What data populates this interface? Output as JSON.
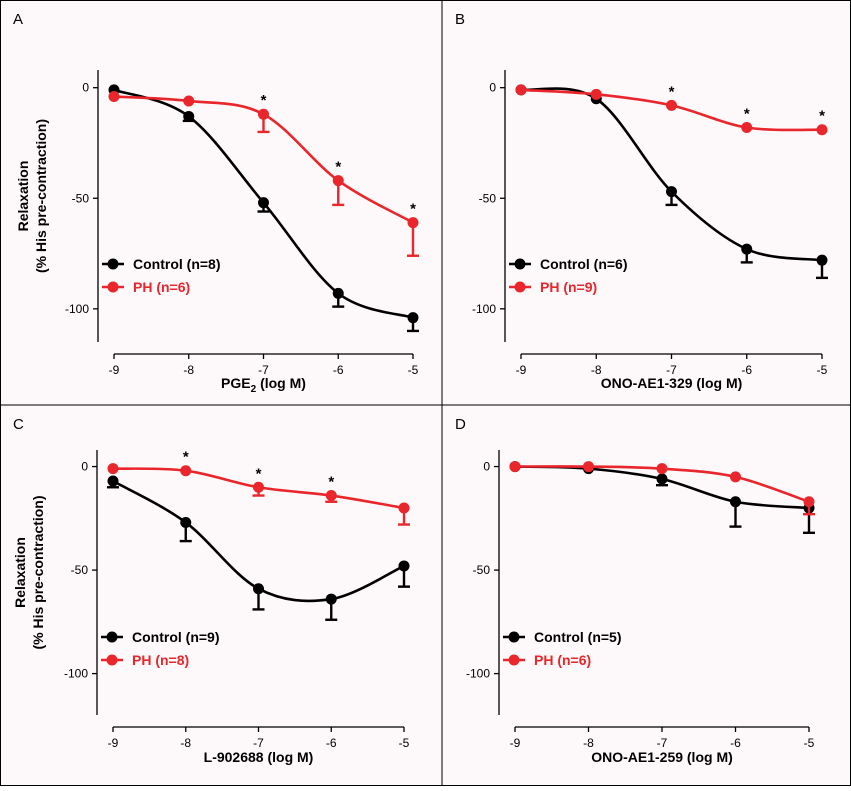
{
  "colors": {
    "control": "#000000",
    "ph": "#e8262b",
    "panel_bg": "#fdf8f9",
    "border": "#000000"
  },
  "chart_data": [
    {
      "type": "line",
      "panel_label": "A",
      "xlabel_main": "PGE",
      "xlabel_sub": "2",
      "xlabel_tail": " (log M)",
      "ylabel_line1": "Relaxation",
      "ylabel_line2": "(% His pre-contraction)",
      "x": [
        -9,
        -8,
        -7,
        -6,
        -5
      ],
      "x_tick_labels": [
        "-9",
        "-8",
        "-7",
        "-6",
        "-5"
      ],
      "xlim": [
        -9,
        -5
      ],
      "ylim": [
        -115,
        8
      ],
      "y_ticks": [
        0,
        -50,
        -100
      ],
      "y_tick_labels": [
        "0",
        "-50",
        "-100"
      ],
      "legend_loc": "lower-left",
      "series": [
        {
          "name": "Control (n=8)",
          "key": "control",
          "values": [
            -1,
            -13,
            -52,
            -93,
            -104
          ],
          "errors": [
            0,
            2,
            4,
            6,
            6
          ],
          "significant": []
        },
        {
          "name": "PH (n=6)",
          "key": "ph",
          "values": [
            -4,
            -6,
            -12,
            -42,
            -61
          ],
          "errors": [
            0,
            0,
            8,
            11,
            15
          ],
          "significant": [
            -7,
            -6,
            -5
          ]
        }
      ]
    },
    {
      "type": "line",
      "panel_label": "B",
      "xlabel_main": "ONO-AE1-329 (log M)",
      "xlabel_sub": "",
      "xlabel_tail": "",
      "ylabel_line1": "",
      "ylabel_line2": "",
      "x": [
        -9,
        -8,
        -7,
        -6,
        -5
      ],
      "x_tick_labels": [
        "-9",
        "-8",
        "-7",
        "-6",
        "-5"
      ],
      "xlim": [
        -9,
        -5
      ],
      "ylim": [
        -115,
        8
      ],
      "y_ticks": [
        0,
        -50,
        -100
      ],
      "y_tick_labels": [
        "0",
        "-50",
        "-100"
      ],
      "legend_loc": "lower-left",
      "series": [
        {
          "name": "Control (n=6)",
          "key": "control",
          "values": [
            -1,
            -5,
            -47,
            -73,
            -78
          ],
          "errors": [
            0,
            0,
            6,
            6,
            8
          ],
          "significant": []
        },
        {
          "name": "PH (n=9)",
          "key": "ph",
          "values": [
            -1,
            -3,
            -8,
            -18,
            -19
          ],
          "errors": [
            0,
            0,
            0,
            0,
            0
          ],
          "significant": [
            -7,
            -6,
            -5
          ]
        }
      ]
    },
    {
      "type": "line",
      "panel_label": "C",
      "xlabel_main": "L-902688 (log M)",
      "xlabel_sub": "",
      "xlabel_tail": "",
      "ylabel_line1": "Relaxation",
      "ylabel_line2": "(% His pre-contraction)",
      "x": [
        -9,
        -8,
        -7,
        -6,
        -5
      ],
      "x_tick_labels": [
        "-9",
        "-8",
        "-7",
        "-6",
        "-5"
      ],
      "xlim": [
        -9,
        -5
      ],
      "ylim": [
        -120,
        8
      ],
      "y_ticks": [
        0,
        -50,
        -100
      ],
      "y_tick_labels": [
        "0",
        "-50",
        "-100"
      ],
      "legend_loc": "lower-left",
      "series": [
        {
          "name": "Control (n=9)",
          "key": "control",
          "values": [
            -7,
            -27,
            -59,
            -64,
            -48
          ],
          "errors": [
            3,
            9,
            10,
            10,
            10
          ],
          "significant": []
        },
        {
          "name": "PH (n=8)",
          "key": "ph",
          "values": [
            -1,
            -2,
            -10,
            -14,
            -20
          ],
          "errors": [
            0,
            0,
            4,
            3,
            8
          ],
          "significant": [
            -8,
            -7,
            -6
          ]
        }
      ]
    },
    {
      "type": "line",
      "panel_label": "D",
      "xlabel_main": "ONO-AE1-259 (log M)",
      "xlabel_sub": "",
      "xlabel_tail": "",
      "ylabel_line1": "",
      "ylabel_line2": "",
      "x": [
        -9,
        -8,
        -7,
        -6,
        -5
      ],
      "x_tick_labels": [
        "-9",
        "-8",
        "-7",
        "-6",
        "-5"
      ],
      "xlim": [
        -9,
        -5
      ],
      "ylim": [
        -120,
        8
      ],
      "y_ticks": [
        0,
        -50,
        -100
      ],
      "y_tick_labels": [
        "0",
        "-50",
        "-100"
      ],
      "legend_loc": "lower-left",
      "series": [
        {
          "name": "Control (n=5)",
          "key": "control",
          "values": [
            0,
            -1,
            -6,
            -17,
            -20
          ],
          "errors": [
            0,
            0,
            3,
            12,
            12
          ],
          "significant": []
        },
        {
          "name": "PH (n=6)",
          "key": "ph",
          "values": [
            0,
            0,
            -1,
            -5,
            -17
          ],
          "errors": [
            0,
            0,
            0,
            0,
            6
          ],
          "significant": []
        }
      ]
    }
  ],
  "significance_marker": "*"
}
